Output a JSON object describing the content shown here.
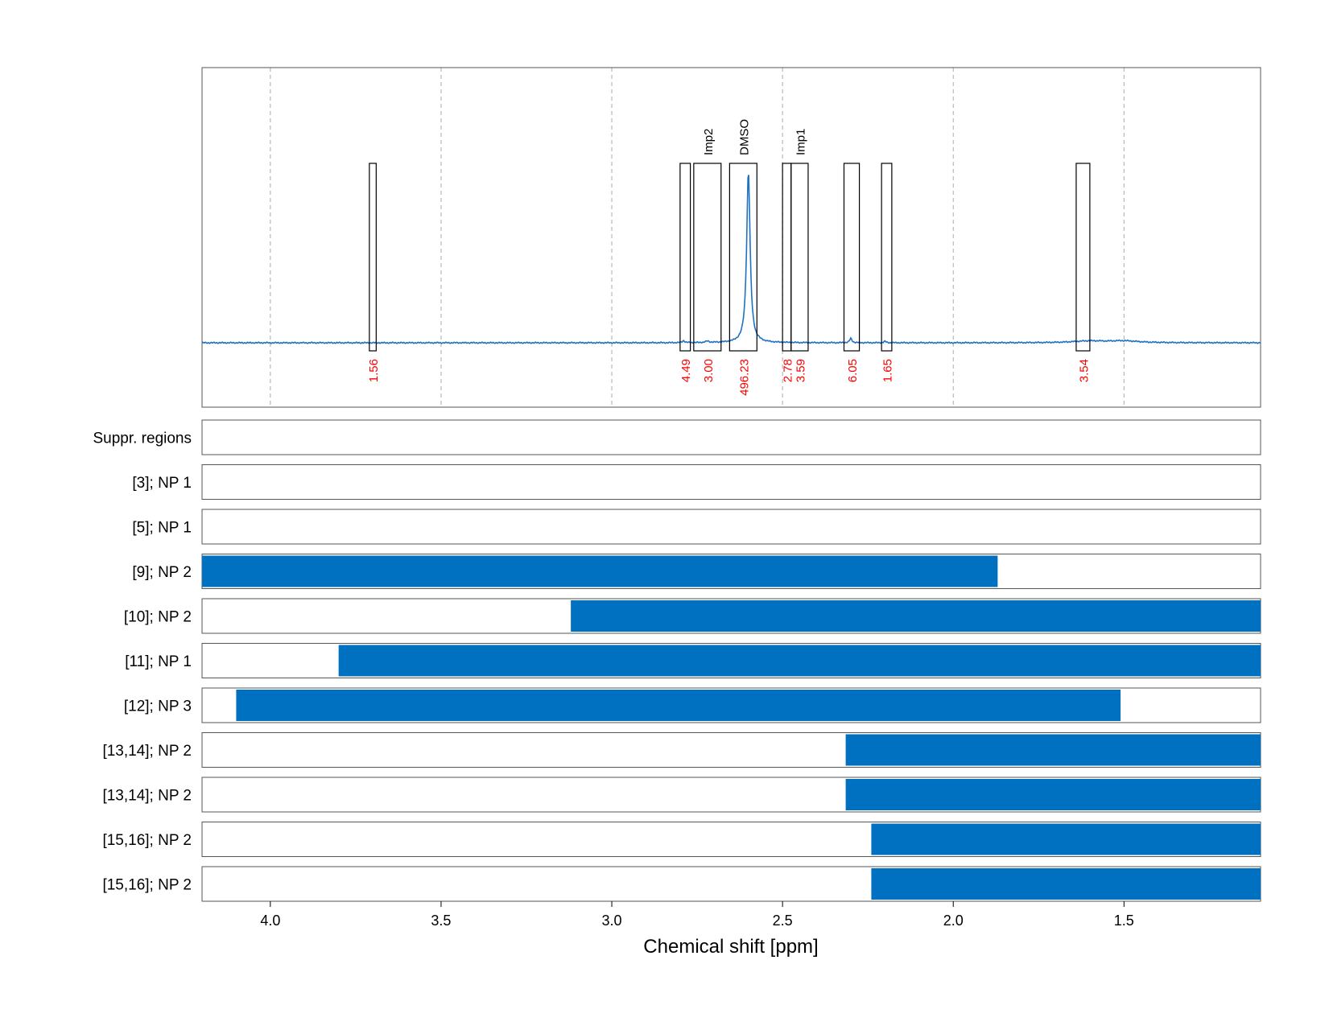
{
  "chart_data": {
    "type": "nmr-spectrum-with-range-tracks",
    "xlabel": "Chemical shift [ppm]",
    "xlim": [
      4.2,
      1.1
    ],
    "x_reversed": true,
    "xticks": [
      4.0,
      3.5,
      3.0,
      2.5,
      2.0,
      1.5
    ],
    "xtick_labels": [
      "4.0",
      "3.5",
      "3.0",
      "2.5",
      "2.0",
      "1.5"
    ],
    "grid": "vertical dashed",
    "colors": {
      "spectrum": "#1f72c2",
      "integral_label": "#ff0000",
      "range_bar": "#0070c0",
      "frame": "#555555"
    },
    "spectrum": {
      "baseline": 0,
      "peaks": [
        {
          "ppm": 2.6,
          "height": 1.0,
          "width": 0.006
        },
        {
          "ppm": 2.3,
          "height": 0.025,
          "width": 0.004
        },
        {
          "ppm": 2.79,
          "height": 0.012,
          "width": 0.004
        },
        {
          "ppm": 2.72,
          "height": 0.008,
          "width": 0.006
        },
        {
          "ppm": 2.2,
          "height": 0.008,
          "width": 0.004
        },
        {
          "ppm": 1.6,
          "height": 0.01,
          "width": 0.06
        },
        {
          "ppm": 1.5,
          "height": 0.01,
          "width": 0.05
        }
      ]
    },
    "integration_regions": [
      {
        "start": 3.71,
        "end": 3.69,
        "integral": "1.56",
        "label": ""
      },
      {
        "start": 2.8,
        "end": 2.77,
        "integral": "4.49",
        "label": ""
      },
      {
        "start": 2.76,
        "end": 2.68,
        "integral": "3.00",
        "label": "Imp2"
      },
      {
        "start": 2.655,
        "end": 2.575,
        "integral": "496.23",
        "label": "DMSO"
      },
      {
        "start": 2.5,
        "end": 2.475,
        "integral": "2.78",
        "label": ""
      },
      {
        "start": 2.475,
        "end": 2.425,
        "integral": "3.59",
        "label": "Imp1"
      },
      {
        "start": 2.32,
        "end": 2.275,
        "integral": "6.05",
        "label": ""
      },
      {
        "start": 2.21,
        "end": 2.18,
        "integral": "1.65",
        "label": ""
      },
      {
        "start": 1.64,
        "end": 1.6,
        "integral": "3.54",
        "label": ""
      }
    ],
    "tracks": [
      {
        "label": "Suppr. regions",
        "bar": null
      },
      {
        "label": "[3]; NP 1",
        "bar": null
      },
      {
        "label": "[5]; NP 1",
        "bar": null
      },
      {
        "label": "[9]; NP 2",
        "bar": [
          4.2,
          1.87
        ]
      },
      {
        "label": "[10]; NP 2",
        "bar": [
          3.12,
          1.1
        ]
      },
      {
        "label": "[11]; NP 1",
        "bar": [
          3.8,
          1.1
        ]
      },
      {
        "label": "[12]; NP 3",
        "bar": [
          4.1,
          1.51
        ]
      },
      {
        "label": "[13,14]; NP 2",
        "bar": [
          2.315,
          1.1
        ]
      },
      {
        "label": "[13,14]; NP 2",
        "bar": [
          2.315,
          1.1
        ]
      },
      {
        "label": "[15,16]; NP 2",
        "bar": [
          2.24,
          1.1
        ]
      },
      {
        "label": "[15,16]; NP 2",
        "bar": [
          2.24,
          1.1
        ]
      }
    ]
  }
}
